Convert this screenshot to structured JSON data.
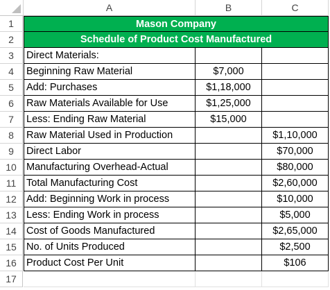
{
  "columns": [
    "A",
    "B",
    "C"
  ],
  "row_numbers": [
    "1",
    "2",
    "3",
    "4",
    "5",
    "6",
    "7",
    "8",
    "9",
    "10",
    "11",
    "12",
    "13",
    "14",
    "15",
    "16",
    "17"
  ],
  "title": "Mason Company",
  "subtitle": "Schedule of Product Cost Manufactured",
  "rows": [
    {
      "label": "Direct Materials:",
      "b": "",
      "c": ""
    },
    {
      "label": "Beginning Raw Material",
      "b": "$7,000",
      "c": ""
    },
    {
      "label": "Add: Purchases",
      "b": "$1,18,000",
      "c": ""
    },
    {
      "label": "Raw Materials Available for Use",
      "b": "$1,25,000",
      "c": ""
    },
    {
      "label": "Less: Ending Raw Material",
      "b": "$15,000",
      "c": ""
    },
    {
      "label": "Raw Material Used in Production",
      "b": "",
      "c": "$1,10,000"
    },
    {
      "label": "Direct Labor",
      "b": "",
      "c": "$70,000"
    },
    {
      "label": "Manufacturing Overhead-Actual",
      "b": "",
      "c": "$80,000"
    },
    {
      "label": "Total Manufacturing Cost",
      "b": "",
      "c": "$2,60,000"
    },
    {
      "label": "Add: Beginning Work in process",
      "b": "",
      "c": "$10,000"
    },
    {
      "label": "Less: Ending Work in process",
      "b": "",
      "c": "$5,000"
    },
    {
      "label": "Cost of Goods Manufactured",
      "b": "",
      "c": "$2,65,000"
    },
    {
      "label": "No. of Units Produced",
      "b": "",
      "c": "$2,500"
    },
    {
      "label": "Product Cost Per Unit",
      "b": "",
      "c": "$106"
    }
  ],
  "colors": {
    "header_fill": "#00b050",
    "header_text": "#ffffff"
  }
}
